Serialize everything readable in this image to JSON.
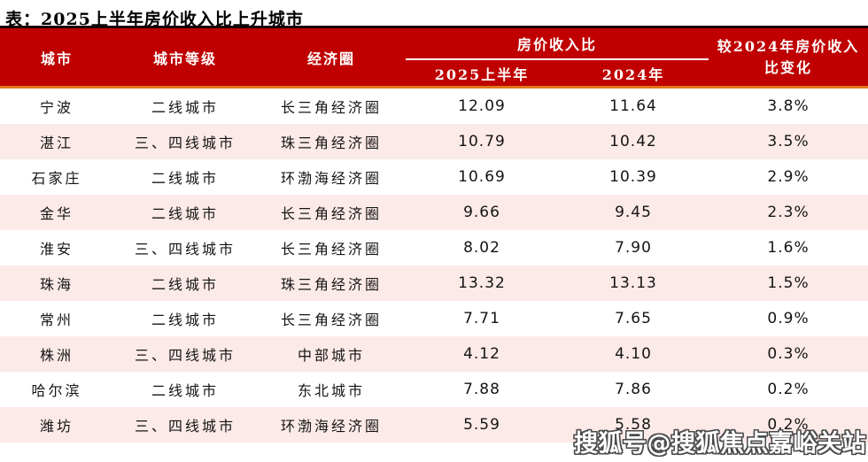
{
  "title": "表：2025上半年房价收入比上升城市",
  "colors": {
    "header_bg": "#C00000",
    "header_top_rule": "#190303",
    "header_bottom_rule": "#E2771C",
    "row_alt_bg": "#FCEAE8",
    "header_text": "#ffffff",
    "body_text": "#141414"
  },
  "table": {
    "columns": [
      "城市",
      "城市等级",
      "经济圈"
    ],
    "group_header": "房价收入比",
    "sub_columns": [
      "2025上半年",
      "2024年"
    ],
    "change_header": "较2024年房价收入比变化",
    "change_header_lines": [
      "较2024年房价收入",
      "比变化"
    ],
    "rows": [
      {
        "city": "宁波",
        "tier": "二线城市",
        "zone": "长三角经济圈",
        "ratio_2025h1": "12.09",
        "ratio_2024": "11.64",
        "change": "3.8%"
      },
      {
        "city": "湛江",
        "tier": "三、四线城市",
        "zone": "珠三角经济圈",
        "ratio_2025h1": "10.79",
        "ratio_2024": "10.42",
        "change": "3.5%"
      },
      {
        "city": "石家庄",
        "tier": "二线城市",
        "zone": "环渤海经济圈",
        "ratio_2025h1": "10.69",
        "ratio_2024": "10.39",
        "change": "2.9%"
      },
      {
        "city": "金华",
        "tier": "二线城市",
        "zone": "长三角经济圈",
        "ratio_2025h1": "9.66",
        "ratio_2024": "9.45",
        "change": "2.3%"
      },
      {
        "city": "淮安",
        "tier": "三、四线城市",
        "zone": "长三角经济圈",
        "ratio_2025h1": "8.02",
        "ratio_2024": "7.90",
        "change": "1.6%"
      },
      {
        "city": "珠海",
        "tier": "二线城市",
        "zone": "珠三角经济圈",
        "ratio_2025h1": "13.32",
        "ratio_2024": "13.13",
        "change": "1.5%"
      },
      {
        "city": "常州",
        "tier": "二线城市",
        "zone": "长三角经济圈",
        "ratio_2025h1": "7.71",
        "ratio_2024": "7.65",
        "change": "0.9%"
      },
      {
        "city": "株洲",
        "tier": "三、四线城市",
        "zone": "中部城市",
        "ratio_2025h1": "4.12",
        "ratio_2024": "4.10",
        "change": "0.3%"
      },
      {
        "city": "哈尔滨",
        "tier": "二线城市",
        "zone": "东北城市",
        "ratio_2025h1": "7.88",
        "ratio_2024": "7.86",
        "change": "0.2%"
      },
      {
        "city": "潍坊",
        "tier": "三、四线城市",
        "zone": "环渤海经济圈",
        "ratio_2025h1": "5.59",
        "ratio_2024": "5.58",
        "change": "0.2%"
      }
    ]
  },
  "watermark": "搜狐号@搜狐焦点嘉峪关站"
}
